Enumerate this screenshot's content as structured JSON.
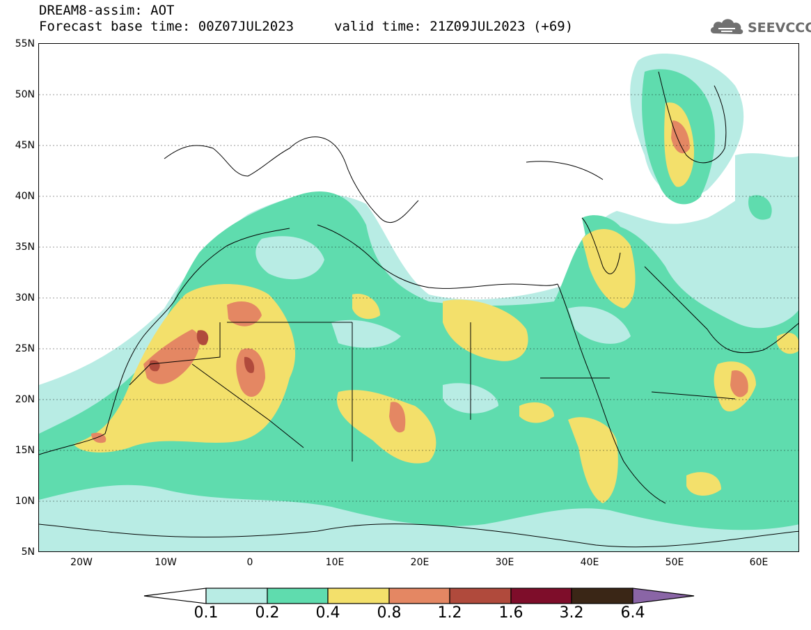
{
  "header": {
    "title": "DREAM8-assim: AOT",
    "base_time": "Forecast base time: 00Z07JUL2023",
    "valid_time": "valid time: 21Z09JUL2023 (+69)",
    "logo_text": "SEEVCCC",
    "logo_icon": "cloud-icon"
  },
  "map": {
    "lon_range": [
      -25,
      65
    ],
    "lat_range": [
      5,
      55
    ],
    "y_ticks": [
      "55N",
      "50N",
      "45N",
      "40N",
      "35N",
      "30N",
      "25N",
      "20N",
      "15N",
      "10N",
      "5N"
    ],
    "x_ticks": [
      "20W",
      "10W",
      "0",
      "10E",
      "20E",
      "30E",
      "40E",
      "50E",
      "60E"
    ]
  },
  "colorbar": {
    "levels": [
      "0.1",
      "0.2",
      "0.4",
      "0.8",
      "1.2",
      "1.6",
      "3.2",
      "6.4"
    ],
    "colors": [
      "#ffffff",
      "#b8ece4",
      "#5fdcae",
      "#f3e06b",
      "#e48763",
      "#b04a3c",
      "#7e0d2a",
      "#3a2616",
      "#8a65a6"
    ]
  }
}
